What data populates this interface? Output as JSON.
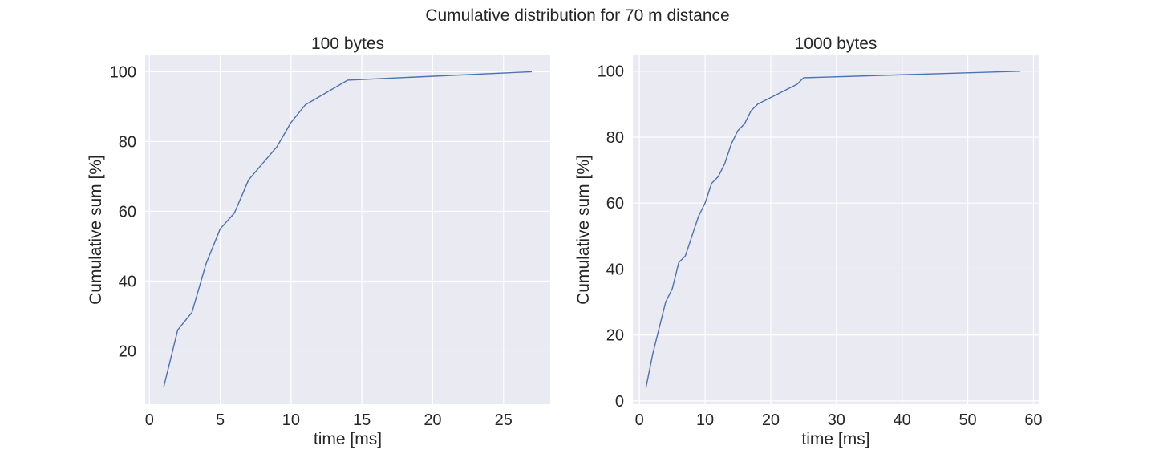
{
  "figure": {
    "title": "Cumulative distribution for 70 m distance"
  },
  "colors": {
    "plot_background": "#eaeaf2",
    "grid": "#ffffff",
    "series": "#4c72b0"
  },
  "chart_data": [
    {
      "type": "line",
      "title": "100 bytes",
      "xlabel": "time [ms]",
      "ylabel": "Cumulative sum [%]",
      "xlim": [
        -0.3,
        28.3
      ],
      "ylim": [
        4.7,
        104.7
      ],
      "xticks": [
        0,
        5,
        10,
        15,
        20,
        25
      ],
      "yticks": [
        20,
        40,
        60,
        80,
        100
      ],
      "grid": true,
      "series": [
        {
          "x": [
            1,
            2,
            3,
            4,
            5,
            6,
            7,
            9,
            10,
            11,
            14,
            27
          ],
          "values": [
            9.5,
            26,
            31,
            45,
            55,
            59.5,
            69,
            78.5,
            85.5,
            90.5,
            97.6,
            100
          ]
        }
      ]
    },
    {
      "type": "line",
      "title": "1000 bytes",
      "xlabel": "time [ms]",
      "ylabel": "Cumulative sum [%]",
      "xlim": [
        -1,
        60.8
      ],
      "ylim": [
        -1,
        104.8
      ],
      "xticks": [
        0,
        10,
        20,
        30,
        40,
        50,
        60
      ],
      "yticks": [
        0,
        20,
        40,
        60,
        80,
        100
      ],
      "grid": true,
      "series": [
        {
          "x": [
            1,
            2,
            4,
            5,
            6,
            7,
            8,
            9,
            10,
            11,
            12,
            13,
            14,
            15,
            16,
            17,
            18,
            24,
            25,
            58
          ],
          "values": [
            4,
            14,
            30,
            34,
            42,
            44,
            50,
            56,
            60,
            66,
            68,
            72,
            78,
            82,
            84,
            88,
            90,
            96,
            98,
            100
          ]
        }
      ]
    }
  ]
}
